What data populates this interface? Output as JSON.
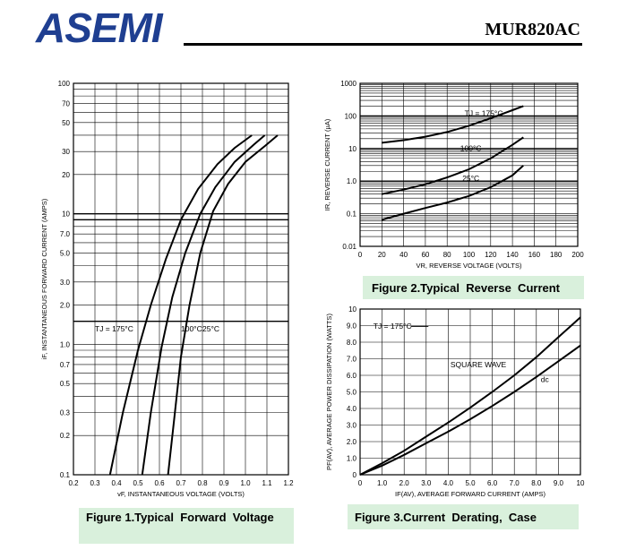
{
  "header": {
    "brand": "ASEMI",
    "part_number": "MUR820AC"
  },
  "captions": {
    "fig1": "Figure 1.Typical  Forward  Voltage",
    "fig2": "Figure 2.Typical  Reverse  Current",
    "fig3": "Figure 3.Current  Derating,  Case"
  },
  "chart_data": [
    {
      "type": "line",
      "title": "",
      "xlabel": "vF, INSTANTANEOUS VOLTAGE (VOLTS)",
      "ylabel": "iF, INSTANTANEOUS FORWARD CURRENT (AMPS)",
      "xlim": [
        0.2,
        1.2
      ],
      "ylim": [
        0.1,
        100
      ],
      "yscale": "log",
      "grid": true,
      "x_ticks": [
        "0.2",
        "0.3",
        "0.4",
        "0.5",
        "0.6",
        "0.7",
        "0.8",
        "0.9",
        "1.0",
        "1.1",
        "1.2"
      ],
      "y_ticks": [
        "0.1",
        "0.2",
        "0.3",
        "0.5",
        "0.7",
        "1.0",
        "2.0",
        "3.0",
        "5.0",
        "7.0",
        "10",
        "20",
        "30",
        "50",
        "70",
        "100"
      ],
      "annotations": [
        "TJ = 175°C",
        "100°C",
        "25°C"
      ],
      "series": [
        {
          "name": "TJ = 175°C",
          "x": [
            0.37,
            0.43,
            0.5,
            0.56,
            0.63,
            0.7,
            0.78,
            0.87,
            0.95,
            1.03
          ],
          "y": [
            0.1,
            0.3,
            0.9,
            2.0,
            4.5,
            9.0,
            15.5,
            24,
            32,
            40
          ]
        },
        {
          "name": "100°C",
          "x": [
            0.52,
            0.56,
            0.61,
            0.66,
            0.72,
            0.79,
            0.86,
            0.95,
            1.04,
            1.09
          ],
          "y": [
            0.1,
            0.3,
            0.95,
            2.3,
            5.0,
            10,
            16,
            25,
            34,
            40
          ]
        },
        {
          "name": "25°C",
          "x": [
            0.64,
            0.67,
            0.7,
            0.74,
            0.79,
            0.85,
            0.92,
            1.0,
            1.09,
            1.15
          ],
          "y": [
            0.1,
            0.28,
            0.8,
            2.0,
            5.0,
            10.5,
            17,
            25,
            33,
            40
          ]
        }
      ]
    },
    {
      "type": "line",
      "title": "",
      "xlabel": "VR, REVERSE VOLTAGE (VOLTS)",
      "ylabel": "IR, REVERSE CURRENT (µA)",
      "xlim": [
        0,
        200
      ],
      "ylim": [
        0.01,
        1000
      ],
      "yscale": "log",
      "grid": true,
      "x_ticks": [
        "0",
        "20",
        "40",
        "60",
        "80",
        "100",
        "120",
        "140",
        "160",
        "180",
        "200"
      ],
      "y_ticks": [
        "0.01",
        "0.1",
        "1.0",
        "10",
        "100",
        "1000"
      ],
      "annotations": [
        "TJ = 175°C",
        "100°C",
        "25°C"
      ],
      "series": [
        {
          "name": "TJ = 175°C",
          "x": [
            20,
            40,
            60,
            80,
            100,
            120,
            140,
            150
          ],
          "y": [
            15,
            18,
            23,
            32,
            50,
            85,
            150,
            200
          ]
        },
        {
          "name": "100°C",
          "x": [
            20,
            40,
            60,
            80,
            100,
            120,
            140,
            150
          ],
          "y": [
            0.4,
            0.55,
            0.8,
            1.3,
            2.3,
            5.0,
            13,
            22
          ]
        },
        {
          "name": "25°C",
          "x": [
            20,
            40,
            60,
            80,
            100,
            120,
            140,
            150
          ],
          "y": [
            0.065,
            0.1,
            0.15,
            0.22,
            0.35,
            0.65,
            1.5,
            3.0
          ]
        }
      ]
    },
    {
      "type": "line",
      "title": "",
      "xlabel": "IF(AV), AVERAGE FORWARD CURRENT (AMPS)",
      "ylabel": "PF(AV), AVERAGE POWER DISSIPATION (WATTS)",
      "xlim": [
        0,
        10
      ],
      "ylim": [
        0,
        10
      ],
      "grid": true,
      "x_ticks": [
        "0",
        "1.0",
        "2.0",
        "3.0",
        "4.0",
        "5.0",
        "6.0",
        "7.0",
        "8.0",
        "9.0",
        "10"
      ],
      "y_ticks": [
        "0",
        "1.0",
        "2.0",
        "3.0",
        "4.0",
        "5.0",
        "6.0",
        "7.0",
        "8.0",
        "9.0",
        "10"
      ],
      "annotations": [
        "TJ = 175°C",
        "SQUARE WAVE",
        "dc"
      ],
      "series": [
        {
          "name": "SQUARE WAVE",
          "x": [
            0,
            1,
            2,
            3,
            4,
            5,
            6,
            7,
            8,
            9,
            10
          ],
          "y": [
            0,
            0.7,
            1.45,
            2.3,
            3.15,
            4.05,
            5.0,
            6.0,
            7.1,
            8.3,
            9.5
          ]
        },
        {
          "name": "dc",
          "x": [
            0,
            1,
            2,
            3,
            4,
            5,
            6,
            7,
            8,
            9,
            10
          ],
          "y": [
            0,
            0.55,
            1.2,
            1.9,
            2.6,
            3.35,
            4.15,
            5.0,
            5.9,
            6.85,
            7.8
          ]
        }
      ]
    }
  ]
}
